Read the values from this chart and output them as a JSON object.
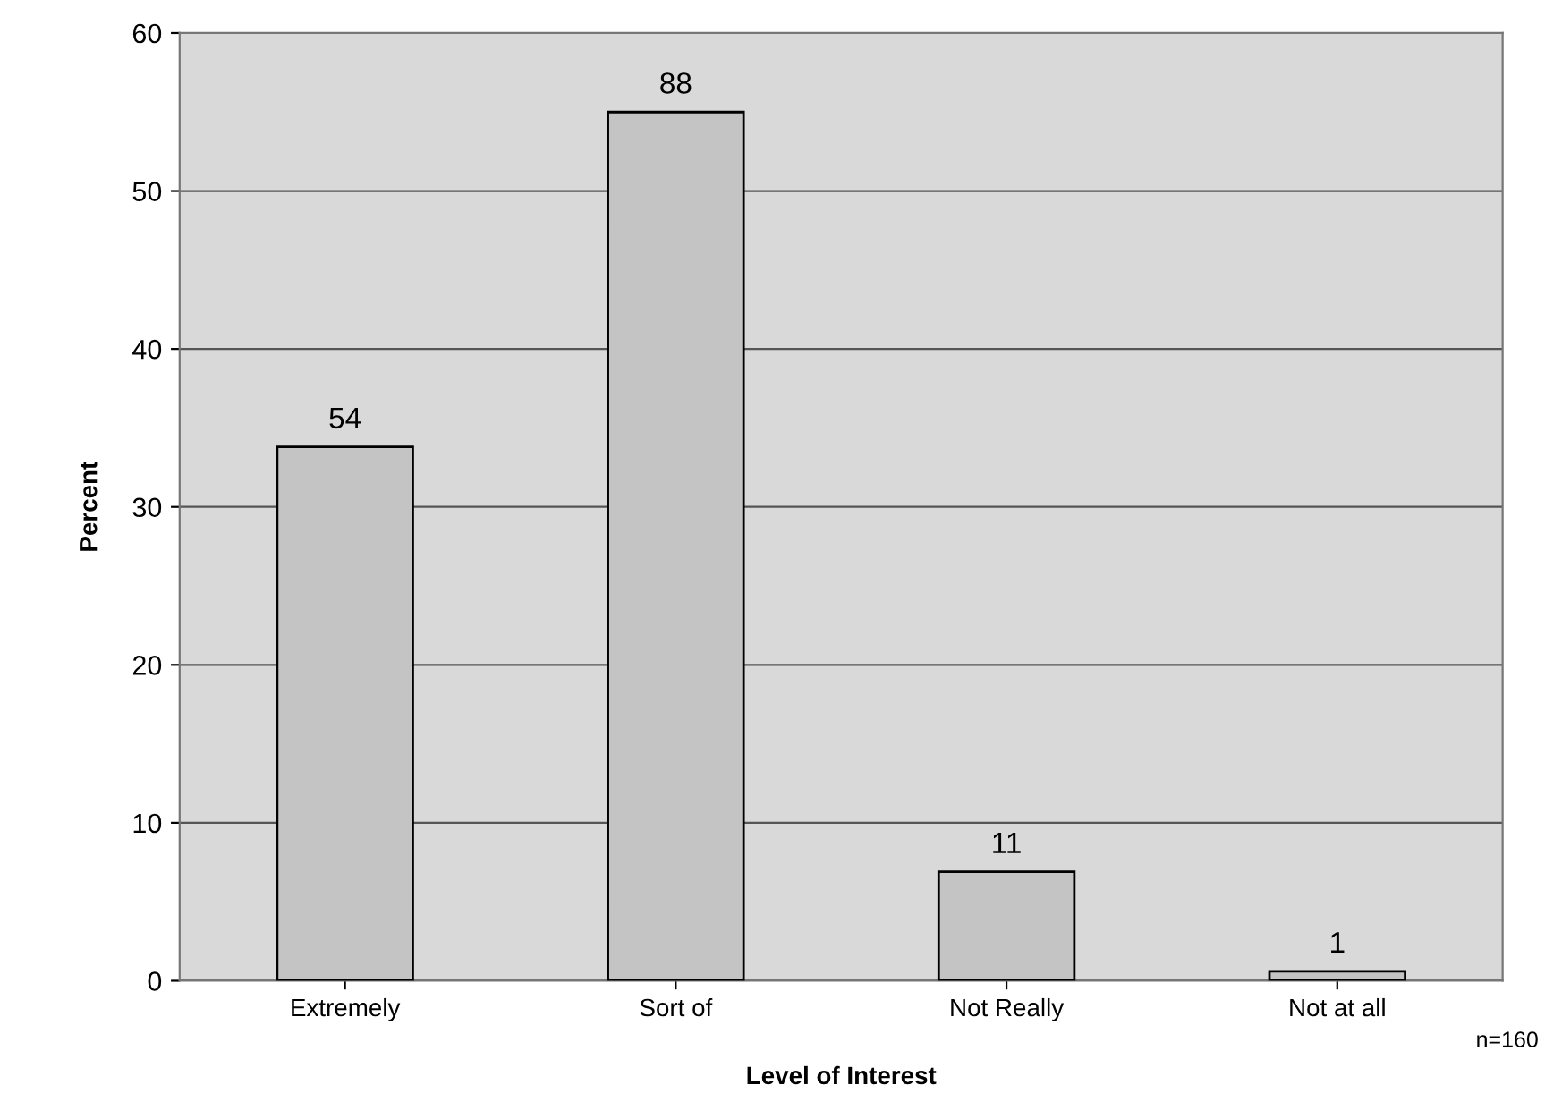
{
  "chart_data": {
    "type": "bar",
    "xlabel": "Level of Interest",
    "ylabel": "Percent",
    "categories": [
      "Extremely",
      "Sort of",
      "Not Really",
      "Not at all"
    ],
    "values": [
      33.8,
      55.0,
      6.9,
      0.6
    ],
    "color": "#c4c4c4",
    "ylim": [
      0,
      60
    ],
    "yticks": [
      0,
      10,
      20,
      30,
      40,
      50,
      60
    ],
    "grid": "y",
    "annotations": [
      {
        "text": "54",
        "x": "Extremely",
        "y": 33.8
      },
      {
        "text": "88",
        "x": "Sort of",
        "y": 55.0
      },
      {
        "text": "11",
        "x": "Not Really",
        "y": 6.9
      },
      {
        "text": "1",
        "x": "Not at all",
        "y": 0.6
      },
      "n=160"
    ]
  }
}
